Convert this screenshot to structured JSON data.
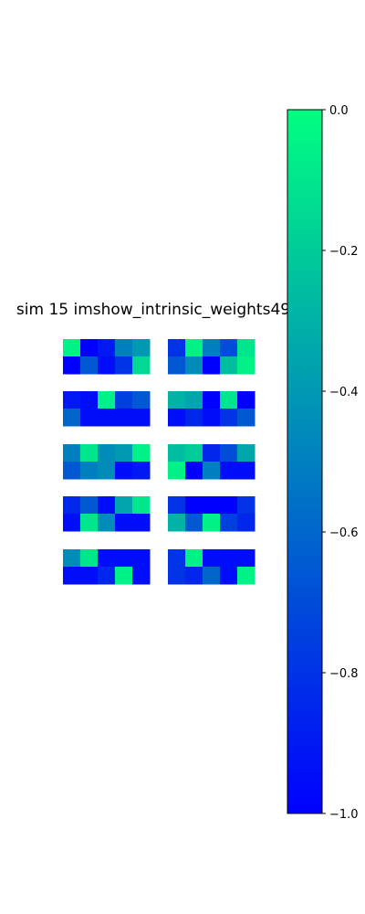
{
  "chart_data": {
    "type": "heatmap",
    "title": "sim 15 imshow_intrinsic_weights49",
    "colormap": "winter",
    "colorbar": {
      "vmin": -1.0,
      "vmax": 0.0,
      "ticks": [
        0.0,
        -0.2,
        -0.4,
        -0.6,
        -0.8,
        -1.0
      ],
      "tick_labels": [
        "0.0",
        "−0.2",
        "−0.4",
        "−0.6",
        "−0.8",
        "−1.0"
      ],
      "color_min": "#0000ff",
      "color_max": "#00ff80"
    },
    "panels": [
      {
        "row": 0,
        "col": 0,
        "values": [
          [
            -0.05,
            -1.0,
            -0.9,
            -0.5,
            -0.4
          ],
          [
            -1.0,
            -0.65,
            -0.95,
            -0.8,
            -0.15
          ]
        ]
      },
      {
        "row": 0,
        "col": 1,
        "values": [
          [
            -0.8,
            -0.05,
            -0.5,
            -0.7,
            -0.1
          ],
          [
            -0.65,
            -0.45,
            -1.0,
            -0.25,
            -0.05
          ]
        ]
      },
      {
        "row": 1,
        "col": 0,
        "values": [
          [
            -0.9,
            -0.95,
            -0.05,
            -0.75,
            -0.65
          ],
          [
            -0.6,
            -0.95,
            -0.95,
            -0.95,
            -0.95
          ]
        ]
      },
      {
        "row": 1,
        "col": 1,
        "values": [
          [
            -0.3,
            -0.35,
            -1.0,
            -0.1,
            -1.0
          ],
          [
            -0.95,
            -0.85,
            -0.95,
            -0.8,
            -0.65
          ]
        ]
      },
      {
        "row": 2,
        "col": 0,
        "values": [
          [
            -0.5,
            -0.1,
            -0.45,
            -0.4,
            -0.05
          ],
          [
            -0.65,
            -0.5,
            -0.45,
            -0.95,
            -0.9
          ]
        ]
      },
      {
        "row": 2,
        "col": 1,
        "values": [
          [
            -0.25,
            -0.2,
            -0.85,
            -0.7,
            -0.35
          ],
          [
            -0.05,
            -1.0,
            -0.5,
            -0.95,
            -0.95
          ]
        ]
      },
      {
        "row": 3,
        "col": 0,
        "values": [
          [
            -0.85,
            -0.65,
            -0.95,
            -0.35,
            -0.1
          ],
          [
            -0.95,
            -0.1,
            -0.45,
            -0.95,
            -0.95
          ]
        ]
      },
      {
        "row": 3,
        "col": 1,
        "values": [
          [
            -0.8,
            -1.0,
            -1.0,
            -1.0,
            -0.8
          ],
          [
            -0.3,
            -0.65,
            -0.05,
            -0.75,
            -0.85
          ]
        ]
      },
      {
        "row": 4,
        "col": 0,
        "values": [
          [
            -0.45,
            -0.1,
            -0.95,
            -0.95,
            -0.95
          ],
          [
            -0.95,
            -0.95,
            -0.85,
            -0.05,
            -0.95
          ]
        ]
      },
      {
        "row": 4,
        "col": 1,
        "values": [
          [
            -0.8,
            -0.05,
            -0.95,
            -0.95,
            -0.95
          ],
          [
            -0.8,
            -0.85,
            -0.6,
            -0.95,
            -0.05
          ]
        ]
      }
    ]
  }
}
